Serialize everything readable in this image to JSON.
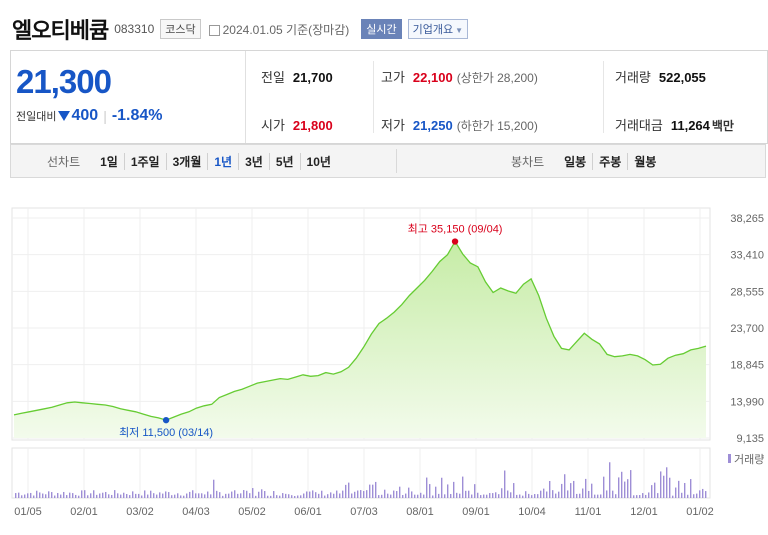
{
  "header": {
    "name": "엘오티베큠",
    "code": "083310",
    "market": "코스닥",
    "date": "2024.01.05",
    "date_suffix": "기준(장마감)",
    "realtime": "실시간",
    "overview": "기업개요"
  },
  "quote": {
    "price": "21,300",
    "change_label": "전일대비",
    "change": "400",
    "change_pct": "-1.84%",
    "prev_label": "전일",
    "prev": "21,700",
    "high_label": "고가",
    "high": "22,100",
    "upper_limit": "(상한가 28,200)",
    "volume_label": "거래량",
    "volume": "522,055",
    "open_label": "시가",
    "open": "21,800",
    "low_label": "저가",
    "low": "21,250",
    "lower_limit": "(하한가 15,200)",
    "value_label": "거래대금",
    "value": "11,264",
    "value_unit": "백만"
  },
  "period": {
    "label": "선차트",
    "items": [
      "1일",
      "1주일",
      "3개월",
      "1년",
      "3년",
      "5년",
      "10년"
    ],
    "active": "1년",
    "candle_label": "봉차트",
    "candle_items": [
      "일봉",
      "주봉",
      "월봉"
    ]
  },
  "colors": {
    "up": "#d9001b",
    "down": "#1756c6",
    "line": "#66cc33",
    "area_top": "#cdeeb0",
    "volume": "#9e8ed6"
  },
  "chart_data": {
    "type": "area",
    "x_ticks": [
      "01/05",
      "02/01",
      "03/02",
      "04/03",
      "05/02",
      "06/01",
      "07/03",
      "08/01",
      "09/01",
      "10/04",
      "11/01",
      "12/01",
      "01/02"
    ],
    "y_ticks": [
      "38,265",
      "33,410",
      "28,555",
      "23,700",
      "18,845",
      "13,990",
      "9,135"
    ],
    "ylim": [
      9135,
      38265
    ],
    "high_label": "최고 35,150 (09/04)",
    "low_label": "최저 11,500 (03/14)",
    "volume_label": "거래량",
    "close": [
      12200,
      12400,
      12600,
      12800,
      13000,
      13200,
      13500,
      13800,
      13900,
      13800,
      13700,
      13600,
      13500,
      13300,
      13000,
      12800,
      12600,
      12300,
      12000,
      11800,
      11500,
      11900,
      12300,
      12600,
      13100,
      13400,
      13600,
      14500,
      14900,
      15300,
      15600,
      16000,
      16400,
      16600,
      16800,
      17000,
      16900,
      17200,
      17500,
      17300,
      17400,
      17800,
      17600,
      17900,
      18500,
      19700,
      21200,
      22900,
      24300,
      25000,
      25800,
      26800,
      28000,
      29000,
      30000,
      31200,
      32500,
      33400,
      35150,
      33500,
      32300,
      31800,
      29800,
      28400,
      29000,
      28600,
      28300,
      29500,
      30200,
      28000,
      25000,
      22600,
      21000,
      20800,
      21900,
      23000,
      22200,
      21600,
      20200,
      19900,
      20000,
      20200,
      20000,
      19500,
      18800,
      18900,
      19700,
      20100,
      20300,
      20800,
      21000,
      21300
    ]
  }
}
